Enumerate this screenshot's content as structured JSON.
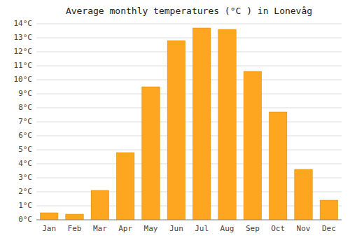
{
  "chart_data": {
    "type": "bar",
    "title": "Average monthly temperatures (°C ) in Lonevåg",
    "categories": [
      "Jan",
      "Feb",
      "Mar",
      "Apr",
      "May",
      "Jun",
      "Jul",
      "Aug",
      "Sep",
      "Oct",
      "Nov",
      "Dec"
    ],
    "values": [
      0.5,
      0.4,
      2.1,
      4.8,
      9.5,
      12.8,
      13.7,
      13.6,
      10.6,
      7.7,
      3.6,
      1.4
    ],
    "color": "#FFA620",
    "ylim": [
      0,
      14
    ],
    "yticks": [
      {
        "value": 0,
        "label": "0°C"
      },
      {
        "value": 1,
        "label": "1°C"
      },
      {
        "value": 2,
        "label": "2°C"
      },
      {
        "value": 3,
        "label": "3°C"
      },
      {
        "value": 4,
        "label": "4°C"
      },
      {
        "value": 5,
        "label": "5°C"
      },
      {
        "value": 6,
        "label": "6°C"
      },
      {
        "value": 7,
        "label": "7°C"
      },
      {
        "value": 8,
        "label": "8°C"
      },
      {
        "value": 9,
        "label": "9°C"
      },
      {
        "value": 10,
        "label": "10°C"
      },
      {
        "value": 11,
        "label": "11°C"
      },
      {
        "value": 12,
        "label": "12°C"
      },
      {
        "value": 13,
        "label": "13°C"
      },
      {
        "value": 14,
        "label": "14°C"
      }
    ],
    "grid": true
  }
}
